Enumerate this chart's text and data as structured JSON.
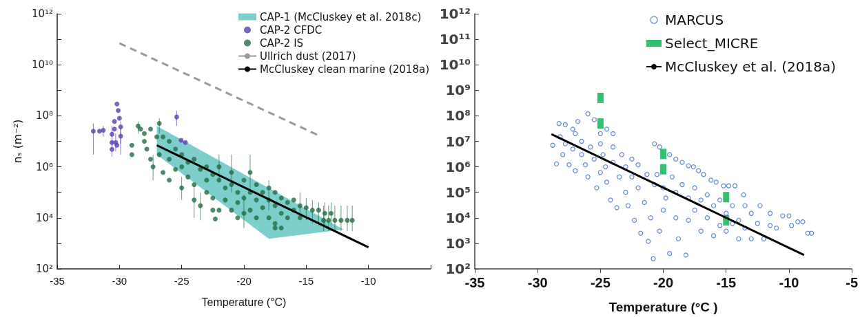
{
  "chart_data": [
    {
      "type": "scatter",
      "xlabel": "Temperature (°C)",
      "ylabel": "nₛ (m⁻²)",
      "log": "y",
      "legend": "top right",
      "xlim": [
        -35,
        -5
      ],
      "xticks": [
        -35,
        -30,
        -25,
        -20,
        -15,
        -10,
        {
          "value": -5,
          "label": null
        }
      ],
      "ylim": [
        100,
        1000000000000.0
      ],
      "yticks": [
        {
          "value": 100,
          "label": "10²"
        },
        {
          "value": 1000,
          "label": null
        },
        {
          "value": 10000.0,
          "label": "10⁴"
        },
        {
          "value": 100000.0,
          "label": null
        },
        {
          "value": 1000000.0,
          "label": "10⁶"
        },
        {
          "value": 10000000.0,
          "label": null
        },
        {
          "value": 100000000.0,
          "label": "10⁸"
        },
        {
          "value": 1000000000.0,
          "label": null
        },
        {
          "value": 10000000000.0,
          "label": "10¹⁰"
        },
        {
          "value": 100000000000.0,
          "label": null
        },
        {
          "value": 1000000000000.0,
          "label": "10¹²"
        }
      ],
      "series": [
        {
          "type": "area",
          "name": "CAP-1 (McCluskey et al. 2018c)",
          "color": "#7ccfcc",
          "x": [
            -27,
            -12,
            -18,
            -27
          ],
          "values": [
            40000000.0,
            3500.0,
            1500.0,
            3000000.0
          ]
        },
        {
          "type": "scatter",
          "name": "CAP-2 CFDC",
          "color": "#5b3fae",
          "marker": "circle",
          "x": [
            -32.1,
            -31.6,
            -31.3,
            -30.2,
            -30.1,
            -30.0,
            -30.4,
            -29.9,
            -30.4,
            -30.6,
            -29.9,
            -30.3,
            -30.6,
            -30.2,
            -30.6,
            -25.4,
            -25.05,
            -24.7
          ],
          "values": [
            25000000.0,
            25000000.0,
            27000000.0,
            290000000.0,
            160000000.0,
            80000000.0,
            60000000.0,
            37000000.0,
            30000000.0,
            19000000.0,
            16000000.0,
            9000000.0,
            4800000.0,
            7000000.0,
            9000000.0,
            90000000.0,
            11000000.0,
            9000000.0
          ],
          "errors": [
            [
              3000000.0,
              50000000.0
            ],
            null,
            [
              15000000.0,
              40000000.0
            ],
            null,
            null,
            null,
            null,
            [
              8000000.0,
              60000000.0
            ],
            null,
            [
              5000000.0,
              40000000.0
            ],
            [
              3000000.0,
              30000000.0
            ],
            [
              4000000.0,
              20000000.0
            ],
            [
              2500000.0,
              10000000.0
            ],
            null,
            null,
            [
              40000000.0,
              160000000.0
            ],
            null,
            null
          ]
        },
        {
          "type": "scatter",
          "name": "CAP-2 IS",
          "color": "#236b43",
          "marker": "circle",
          "x": [
            -29,
            -29,
            -28.5,
            -28.3,
            -28,
            -28,
            -27.8,
            -27.5,
            -27.5,
            -27.3,
            -26.8,
            -27,
            -26.8,
            -26.5,
            -26.5,
            -26,
            -26,
            -26,
            -25.5,
            -25.5,
            -25,
            -25,
            -25,
            -24.5,
            -24.5,
            -24,
            -24,
            -24,
            -23.5,
            -23.5,
            -23,
            -23,
            -23,
            -22.5,
            -22.5,
            -22.5,
            -22,
            -22,
            -22,
            -21.5,
            -21.5,
            -21,
            -21,
            -21,
            -22.3,
            -20.5,
            -20.5,
            -20.5,
            -20,
            -20,
            -20,
            -19.5,
            -19.5,
            -19.5,
            -19,
            -19,
            -19,
            -18.5,
            -18.5,
            -18,
            -18,
            -18,
            -17.5,
            -17.5,
            -17.5,
            -17,
            -17,
            -17.5,
            -17,
            -16.5,
            -16.5,
            -16,
            -16,
            -15.5,
            -15.5,
            -15,
            -14.5,
            -14,
            -13.5,
            -13,
            -13.6,
            -13.2,
            -12.7,
            -12.2,
            -11.7,
            -11.3
          ],
          "values": [
            7000000.0,
            3000000.0,
            40000000.0,
            30000000.0,
            20000000.0,
            10000000.0,
            5000000.0,
            30000000.0,
            2000000.0,
            1000000.0,
            50000000.0,
            15000000.0,
            3000000.0,
            15000000.0,
            600000.0,
            10000000.0,
            2000000.0,
            300000.0,
            5000000.0,
            800000.0,
            3000000.0,
            1000000.0,
            150000.0,
            1500000.0,
            400000.0,
            2000000.0,
            200000.0,
            50000.0,
            800000.0,
            30000.0,
            1000000.0,
            300000.0,
            100000.0,
            500000.0,
            60000.0,
            20000.0,
            300000.0,
            1000000.0,
            20000.0,
            150000.0,
            50000.0,
            600000.0,
            200000.0,
            20000.0,
            9000.0,
            100000.0,
            40000.0,
            10000.0,
            300000.0,
            60000.0,
            15000.0,
            600000.0,
            100000.0,
            20000.0,
            200000.0,
            50000.0,
            10000.0,
            100000.0,
            25000.0,
            150000.0,
            50000.0,
            10000.0,
            100000.0,
            30000.0,
            6000.0,
            60000.0,
            15000.0,
            4000.0,
            4000.0,
            40000.0,
            10000.0,
            50000.0,
            20000.0,
            30000.0,
            10000.0,
            25000.0,
            20000.0,
            20000.0,
            15000.0,
            15000.0,
            8000.0,
            8000.0,
            8000.0,
            8000.0,
            8000.0,
            8000.0
          ],
          "errors": [
            null,
            null,
            [
              20000000.0,
              60000000.0
            ],
            null,
            null,
            null,
            null,
            null,
            null,
            [
              300000.0,
              3000000.0
            ],
            [
              20000000.0,
              80000000.0
            ],
            null,
            null,
            null,
            null,
            null,
            null,
            null,
            null,
            null,
            null,
            null,
            [
              50000.0,
              400000.0
            ],
            null,
            null,
            null,
            null,
            [
              10000.0,
              200000.0
            ],
            null,
            [
              8000.0,
              100000.0
            ],
            null,
            null,
            null,
            null,
            null,
            null,
            null,
            [
              300000.0,
              3000000.0
            ],
            null,
            null,
            null,
            [
              100000.0,
              3000000.0
            ],
            null,
            null,
            null,
            null,
            null,
            null,
            null,
            null,
            [
              4000.0,
              80000.0
            ],
            [
              100000.0,
              3000000.0
            ],
            null,
            null,
            null,
            null,
            null,
            null,
            null,
            null,
            [
              20000.0,
              300000.0
            ],
            null,
            null,
            null,
            null,
            null,
            null,
            null,
            null,
            null,
            null,
            null,
            null,
            [
              10000.0,
              100000.0
            ],
            null,
            [
              8000.0,
              60000.0
            ],
            [
              6000.0,
              50000.0
            ],
            [
              5000.0,
              40000.0
            ],
            [
              5000.0,
              40000.0
            ],
            [
              5000.0,
              40000.0
            ],
            [
              3000.0,
              30000.0
            ],
            [
              3000.0,
              30000.0
            ],
            [
              3000.0,
              30000.0
            ],
            [
              3000.0,
              30000.0
            ],
            [
              3000.0,
              30000.0
            ],
            [
              3000.0,
              30000.0
            ]
          ]
        },
        {
          "type": "line",
          "name": "Ullrich dust (2017)",
          "color": "#9a9a9a",
          "line_style": "dashed",
          "marker": "none",
          "x": [
            -30,
            -14
          ],
          "values": [
            70000000000.0,
            17000000.0
          ]
        },
        {
          "type": "line",
          "name": "McCluskey clean marine (2018a)",
          "color": "#000000",
          "line_style": "solid",
          "marker": "none",
          "x": [
            -27,
            -10
          ],
          "values": [
            7000000.0,
            700.0
          ]
        }
      ]
    },
    {
      "type": "scatter",
      "xlabel": "Temperature (°C )",
      "log": "y",
      "legend": "top right",
      "xlim": [
        -35,
        -5
      ],
      "xticks": [
        -35,
        -30,
        -25,
        -20,
        -15,
        -10,
        -5
      ],
      "ylim": [
        100,
        1000000000000.0
      ],
      "yticks": [
        {
          "value": 100,
          "label": "10²"
        },
        {
          "value": 1000,
          "label": "10³"
        },
        {
          "value": 10000.0,
          "label": "10⁴"
        },
        {
          "value": 100000.0,
          "label": "10⁵"
        },
        {
          "value": 1000000.0,
          "label": "10⁶"
        },
        {
          "value": 10000000.0,
          "label": "10⁷"
        },
        {
          "value": 100000000.0,
          "label": "10⁸"
        },
        {
          "value": 1000000000.0,
          "label": "10⁹"
        },
        {
          "value": 10000000000.0,
          "label": "10¹⁰"
        },
        {
          "value": 100000000000.0,
          "label": "10¹¹"
        },
        {
          "value": 1000000000000.0,
          "label": "10¹²"
        }
      ],
      "series": [
        {
          "type": "scatter",
          "name": "MARCUS",
          "color": "#4472c4",
          "marker": "circle",
          "x": [
            -20.7,
            -20.3,
            -19.5,
            -19,
            -18.5,
            -18,
            -17.6,
            -17.2,
            -16.8,
            -16.2,
            -15.8,
            -15.2,
            -14.8,
            -14.3,
            -13.6,
            -26,
            -26.8,
            -25.5,
            -28.3,
            -27.8,
            -27.2,
            -24.5,
            -24,
            -25,
            -28.8,
            -28.5,
            -28.2,
            -28,
            -27.8,
            -27.5,
            -27.2,
            -27,
            -27,
            -26.5,
            -26.5,
            -26.2,
            -26,
            -25.8,
            -25.5,
            -25.3,
            -25,
            -25,
            -24.8,
            -24.6,
            -24.5,
            -24.2,
            -24,
            -24,
            -23.7,
            -23.5,
            -23.3,
            -23,
            -23,
            -22.8,
            -22.5,
            -22.5,
            -22.3,
            -22,
            -22,
            -21.8,
            -21.5,
            -21.3,
            -21.2,
            -21,
            -20.8,
            -20.7,
            -20.5,
            -20.3,
            -20,
            -20,
            -19.8,
            -19.5,
            -19.3,
            -19,
            -19,
            -18.8,
            -18.5,
            -18.2,
            -18,
            -18,
            -17.5,
            -17.5,
            -17,
            -17,
            -16.5,
            -16.5,
            -16,
            -16,
            -15.5,
            -15.5,
            -15,
            -15,
            -14.5,
            -14.5,
            -14,
            -14,
            -13.5,
            -13.5,
            -13,
            -13,
            -12.5,
            -12.3,
            -12,
            -11.5,
            -11.5,
            -11,
            -10.5,
            -10,
            -9.8,
            -9.3,
            -8.9,
            -8.5,
            -8.2
          ],
          "values": [
            8000000.0,
            6000000.0,
            3000000.0,
            2000000.0,
            1500000.0,
            1100000.0,
            1000000.0,
            700000.0,
            500000.0,
            300000.0,
            250000.0,
            180000.0,
            180000.0,
            180000.0,
            80000.0,
            120000000.0,
            60000000.0,
            70000000.0,
            50000000.0,
            45000000.0,
            30000000.0,
            30000000.0,
            20000000.0,
            20000000.0,
            7000000.0,
            1300000.0,
            15000000.0,
            3000000.0,
            8000000.0,
            1200000.0,
            5000000.0,
            20000000.0,
            700000.0,
            10000000.0,
            3000000.0,
            1200000.0,
            400000.0,
            6000000.0,
            2000000.0,
            150000.0,
            8000000.0,
            600000.0,
            3000000.0,
            1000000.0,
            250000.0,
            50000.0,
            6000000.0,
            1500000.0,
            25000.0,
            400000.0,
            3000000.0,
            1000000.0,
            100000.0,
            30000.0,
            2000000.0,
            400000.0,
            8000.0,
            150000.0,
            1200000.0,
            2500.0,
            40000.0,
            500000.0,
            1200.0,
            10000.0,
            250.0,
            200000.0,
            500000.0,
            3000.0,
            150000.0,
            20000.0,
            60000.0,
            400.0,
            400000.0,
            10000.0,
            100000.0,
            1500.0,
            200000.0,
            350.0,
            60000.0,
            8000.0,
            150000.0,
            20000.0,
            3000.0,
            50000.0,
            80000.0,
            10000.0,
            2000.0,
            30000.0,
            50000.0,
            5000.0,
            15000.0,
            3000.0,
            30000.0,
            6000.0,
            8000.0,
            1500.0,
            30000.0,
            4000.0,
            15000.0,
            1500.0,
            6000.0,
            30000.0,
            1500.0,
            15000.0,
            5000.0,
            4000.0,
            12000.0,
            12000.0,
            5000.0,
            7000.0,
            7000.0,
            2500.0,
            2500.0
          ]
        },
        {
          "type": "scatter",
          "name": "Select_MICRE",
          "color": "#00b050",
          "marker": "square",
          "x": [
            -25,
            -25,
            -20,
            -20,
            -15,
            -15
          ],
          "values": [
            500000000.0,
            50000000.0,
            3200000.0,
            800000.0,
            65000.0,
            8000.0
          ]
        },
        {
          "type": "line",
          "name": "McCluskey et al. (2018a)",
          "color": "#000000",
          "line_style": "solid",
          "marker": "none",
          "x": [
            -28.9,
            -8.8
          ],
          "values": [
            19000000.0,
            350.0
          ]
        }
      ]
    }
  ]
}
